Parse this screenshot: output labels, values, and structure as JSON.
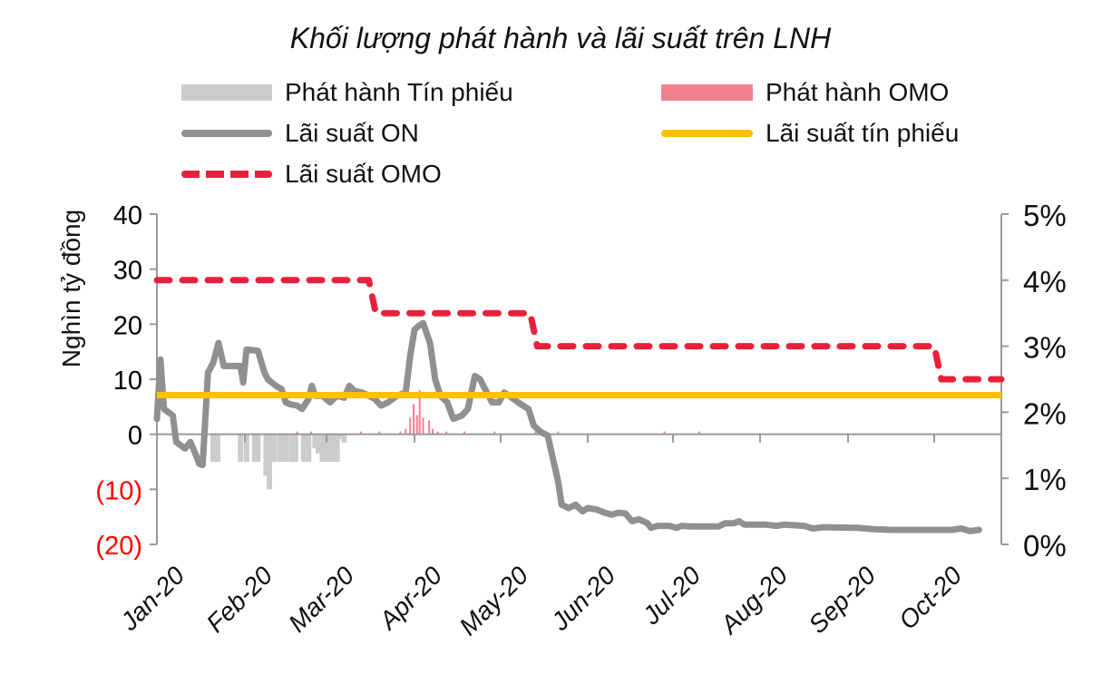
{
  "chart_data": {
    "type": "bar+line",
    "title": "Khối lượng phát hành và lãi suất trên LNH",
    "ylabel_left": "Nghìn tỷ đồng",
    "ylabel_right": "",
    "xlabel": "",
    "ylim_left": [
      -20,
      40
    ],
    "ylim_right": [
      0,
      5
    ],
    "left_ticks": [
      {
        "label": "40",
        "value": 40,
        "color": "#000000"
      },
      {
        "label": "30",
        "value": 30,
        "color": "#000000"
      },
      {
        "label": "20",
        "value": 20,
        "color": "#000000"
      },
      {
        "label": "10",
        "value": 10,
        "color": "#000000"
      },
      {
        "label": "0",
        "value": 0,
        "color": "#000000"
      },
      {
        "label": "(10)",
        "value": -10,
        "color": "#ff0000"
      },
      {
        "label": "(20)",
        "value": -20,
        "color": "#ff0000"
      }
    ],
    "right_ticks": [
      {
        "label": "5%",
        "value": 5
      },
      {
        "label": "4%",
        "value": 4
      },
      {
        "label": "3%",
        "value": 3
      },
      {
        "label": "2%",
        "value": 2
      },
      {
        "label": "1%",
        "value": 1
      },
      {
        "label": "0%",
        "value": 0
      }
    ],
    "x_ticks": [
      {
        "label": "Jan-20",
        "pos": 0
      },
      {
        "label": "Feb-20",
        "pos": 1
      },
      {
        "label": "Mar-20",
        "pos": 2
      },
      {
        "label": "Apr-20",
        "pos": 3
      },
      {
        "label": "May-20",
        "pos": 4
      },
      {
        "label": "Jun-20",
        "pos": 5
      },
      {
        "label": "Jul-20",
        "pos": 6
      },
      {
        "label": "Aug-20",
        "pos": 7
      },
      {
        "label": "Sep-20",
        "pos": 8
      },
      {
        "label": "Oct-20",
        "pos": 9
      }
    ],
    "x_range_months": [
      0,
      9.75
    ],
    "legend": [
      {
        "name": "Phát hành Tín phiếu",
        "type": "bar",
        "color": "#cccccc"
      },
      {
        "name": "Phát hành OMO",
        "type": "bar",
        "color": "#f08090"
      },
      {
        "name": "Lãi suất ON",
        "type": "line",
        "color": "#909090"
      },
      {
        "name": "Lãi suất tín phiếu",
        "type": "line",
        "color": "#ffc000"
      },
      {
        "name": "Lãi suất OMO",
        "type": "dashed-line",
        "color": "#e8203c"
      }
    ],
    "series": [
      {
        "name": "Phát hành Tín phiếu",
        "axis": "left",
        "type": "bar",
        "points": [
          [
            0.64,
            -5
          ],
          [
            0.69,
            -5
          ],
          [
            0.95,
            -5
          ],
          [
            1.02,
            -5
          ],
          [
            1.12,
            -5
          ],
          [
            1.16,
            -5
          ],
          [
            1.26,
            -7.5
          ],
          [
            1.3,
            -10
          ],
          [
            1.36,
            -5
          ],
          [
            1.43,
            -5
          ],
          [
            1.47,
            -5
          ],
          [
            1.51,
            -5
          ],
          [
            1.58,
            -5
          ],
          [
            1.62,
            -5
          ],
          [
            1.72,
            -5
          ],
          [
            1.78,
            -5
          ],
          [
            1.86,
            -2.5
          ],
          [
            1.9,
            -3.5
          ],
          [
            1.95,
            -5
          ],
          [
            1.99,
            -5
          ],
          [
            2.03,
            -5
          ],
          [
            2.07,
            -5
          ],
          [
            2.12,
            -5
          ],
          [
            2.2,
            -1.5
          ],
          [
            1.34,
            -0.8
          ],
          [
            2.16,
            -0.8
          ]
        ]
      },
      {
        "name": "Phát hành OMO",
        "axis": "left",
        "type": "bar",
        "points": [
          [
            1.64,
            0.5
          ],
          [
            1.81,
            0.5
          ],
          [
            2.39,
            0.5
          ],
          [
            2.6,
            0.5
          ],
          [
            2.84,
            0.5
          ],
          [
            2.9,
            1
          ],
          [
            2.95,
            3
          ],
          [
            2.99,
            5.5
          ],
          [
            3.03,
            3.5
          ],
          [
            3.06,
            8
          ],
          [
            3.1,
            3
          ],
          [
            3.17,
            2.5
          ],
          [
            3.21,
            1
          ],
          [
            3.27,
            0.5
          ],
          [
            3.37,
            0.5
          ],
          [
            3.58,
            0.5
          ],
          [
            3.93,
            0.5
          ],
          [
            4.4,
            0.5
          ],
          [
            4.46,
            0.5
          ],
          [
            4.66,
            0.5
          ],
          [
            5.9,
            0.5
          ],
          [
            6.3,
            0.5
          ]
        ]
      },
      {
        "name": "Lãi suất ON",
        "axis": "right",
        "type": "line",
        "points": [
          [
            0.0,
            1.9
          ],
          [
            0.04,
            2.8
          ],
          [
            0.08,
            2.05
          ],
          [
            0.18,
            1.95
          ],
          [
            0.22,
            1.55
          ],
          [
            0.32,
            1.45
          ],
          [
            0.38,
            1.55
          ],
          [
            0.46,
            1.3
          ],
          [
            0.48,
            1.22
          ],
          [
            0.52,
            1.2
          ],
          [
            0.58,
            2.6
          ],
          [
            0.64,
            2.75
          ],
          [
            0.7,
            3.05
          ],
          [
            0.76,
            2.7
          ],
          [
            0.95,
            2.7
          ],
          [
            0.98,
            2.45
          ],
          [
            1.02,
            2.95
          ],
          [
            1.16,
            2.93
          ],
          [
            1.24,
            2.6
          ],
          [
            1.28,
            2.5
          ],
          [
            1.38,
            2.4
          ],
          [
            1.45,
            2.35
          ],
          [
            1.5,
            2.15
          ],
          [
            1.56,
            2.12
          ],
          [
            1.64,
            2.1
          ],
          [
            1.7,
            2.05
          ],
          [
            1.78,
            2.2
          ],
          [
            1.82,
            2.4
          ],
          [
            1.86,
            2.25
          ],
          [
            1.95,
            2.25
          ],
          [
            2.04,
            2.15
          ],
          [
            2.12,
            2.25
          ],
          [
            2.2,
            2.22
          ],
          [
            2.26,
            2.4
          ],
          [
            2.32,
            2.32
          ],
          [
            2.4,
            2.3
          ],
          [
            2.48,
            2.25
          ],
          [
            2.55,
            2.2
          ],
          [
            2.62,
            2.1
          ],
          [
            2.7,
            2.15
          ],
          [
            2.8,
            2.25
          ],
          [
            2.9,
            2.3
          ],
          [
            2.95,
            2.85
          ],
          [
            3.0,
            3.25
          ],
          [
            3.04,
            3.3
          ],
          [
            3.1,
            3.35
          ],
          [
            3.18,
            3.05
          ],
          [
            3.24,
            2.5
          ],
          [
            3.3,
            2.25
          ],
          [
            3.38,
            2.15
          ],
          [
            3.45,
            1.9
          ],
          [
            3.55,
            1.95
          ],
          [
            3.62,
            2.05
          ],
          [
            3.7,
            2.55
          ],
          [
            3.76,
            2.5
          ],
          [
            3.84,
            2.3
          ],
          [
            3.9,
            2.15
          ],
          [
            3.98,
            2.15
          ],
          [
            4.04,
            2.3
          ],
          [
            4.1,
            2.25
          ],
          [
            4.2,
            2.15
          ],
          [
            4.32,
            2.05
          ],
          [
            4.38,
            1.8
          ],
          [
            4.46,
            1.7
          ],
          [
            4.54,
            1.65
          ],
          [
            4.6,
            1.3
          ],
          [
            4.66,
            0.95
          ],
          [
            4.7,
            0.6
          ],
          [
            4.78,
            0.55
          ],
          [
            4.86,
            0.6
          ],
          [
            4.94,
            0.5
          ],
          [
            5.0,
            0.55
          ],
          [
            5.1,
            0.53
          ],
          [
            5.2,
            0.48
          ],
          [
            5.28,
            0.45
          ],
          [
            5.36,
            0.48
          ],
          [
            5.44,
            0.47
          ],
          [
            5.52,
            0.35
          ],
          [
            5.6,
            0.38
          ],
          [
            5.7,
            0.32
          ],
          [
            5.74,
            0.25
          ],
          [
            5.82,
            0.28
          ],
          [
            5.96,
            0.28
          ],
          [
            6.04,
            0.25
          ],
          [
            6.1,
            0.28
          ],
          [
            6.2,
            0.27
          ],
          [
            6.52,
            0.27
          ],
          [
            6.6,
            0.32
          ],
          [
            6.7,
            0.32
          ],
          [
            6.76,
            0.35
          ],
          [
            6.82,
            0.3
          ],
          [
            7.06,
            0.3
          ],
          [
            7.18,
            0.28
          ],
          [
            7.28,
            0.3
          ],
          [
            7.5,
            0.28
          ],
          [
            7.6,
            0.24
          ],
          [
            7.72,
            0.26
          ],
          [
            8.1,
            0.25
          ],
          [
            8.3,
            0.23
          ],
          [
            8.5,
            0.22
          ],
          [
            9.2,
            0.22
          ],
          [
            9.3,
            0.24
          ],
          [
            9.4,
            0.2
          ],
          [
            9.5,
            0.22
          ]
        ]
      },
      {
        "name": "Lãi suất tín phiếu",
        "axis": "right",
        "type": "line",
        "points": [
          [
            0.0,
            2.26
          ],
          [
            9.75,
            2.26
          ]
        ]
      },
      {
        "name": "Lãi suất OMO",
        "axis": "right",
        "type": "dashed-line",
        "points": [
          [
            0.0,
            4.0
          ],
          [
            2.48,
            4.0
          ],
          [
            2.56,
            3.5
          ],
          [
            4.34,
            3.5
          ],
          [
            4.42,
            3.0
          ],
          [
            9.0,
            3.0
          ],
          [
            9.08,
            2.5
          ],
          [
            9.75,
            2.5
          ]
        ]
      }
    ]
  }
}
